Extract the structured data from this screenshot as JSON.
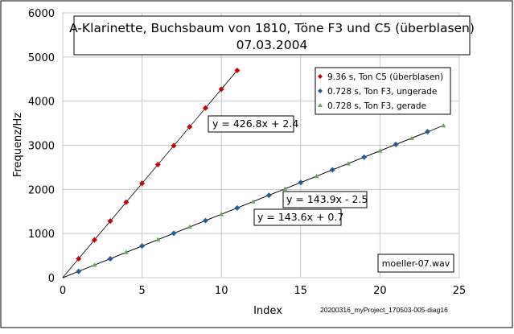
{
  "chart_data": {
    "type": "scatter",
    "title_lines": [
      "A-Klarinette, Buchsbaum von 1810, Töne F3 und C5 (überblasen)",
      "07.03.2004"
    ],
    "xlabel": "Index",
    "ylabel": "Frequenz/Hz",
    "xlim": [
      0,
      25
    ],
    "ylim": [
      0,
      6000
    ],
    "x_ticks": [
      0,
      5,
      10,
      15,
      20,
      25
    ],
    "y_ticks": [
      0,
      1000,
      2000,
      3000,
      4000,
      5000,
      6000
    ],
    "grid": true,
    "legend_position": "top-right",
    "series": [
      {
        "name": "9.36 s, Ton C5 (überblasen)",
        "color": "#cc0000",
        "marker": "diamond",
        "x": [
          1,
          2,
          3,
          4,
          5,
          6,
          7,
          8,
          9,
          10,
          11
        ],
        "y": [
          429,
          856,
          1283,
          1709,
          2136,
          2563,
          2990,
          3417,
          3844,
          4270,
          4697
        ]
      },
      {
        "name": "0.728 s, Ton F3, ungerade",
        "color": "#1f5fa0",
        "marker": "diamond",
        "x": [
          1,
          3,
          5,
          7,
          9,
          11,
          13,
          15,
          17,
          19,
          21,
          23
        ],
        "y": [
          141,
          429,
          717,
          1005,
          1293,
          1580,
          1868,
          2156,
          2444,
          2731,
          3019,
          3307
        ]
      },
      {
        "name": "0.728 s, Ton F3, gerade",
        "color": "#6aa84f",
        "marker": "triangle",
        "x": [
          2,
          4,
          6,
          8,
          10,
          12,
          14,
          16,
          18,
          20,
          22,
          24
        ],
        "y": [
          288,
          575,
          862,
          1149,
          1436,
          1723,
          2010,
          2298,
          2585,
          2872,
          3159,
          3446
        ]
      }
    ],
    "trendlines": [
      {
        "label": "y = 426.8x + 2.4",
        "slope": 426.8,
        "intercept": 2.4,
        "x_range": [
          0,
          11
        ]
      },
      {
        "label": "y = 143.9x - 2.5",
        "slope": 143.9,
        "intercept": -2.5,
        "x_range": [
          0,
          23
        ]
      },
      {
        "label": "y = 143.6x + 0.7",
        "slope": 143.6,
        "intercept": 0.7,
        "x_range": [
          0,
          24
        ]
      }
    ],
    "annotations": {
      "file_label": "moeller-07.wav",
      "footnote": "20200316_myProject_170503-005-diag16"
    }
  }
}
